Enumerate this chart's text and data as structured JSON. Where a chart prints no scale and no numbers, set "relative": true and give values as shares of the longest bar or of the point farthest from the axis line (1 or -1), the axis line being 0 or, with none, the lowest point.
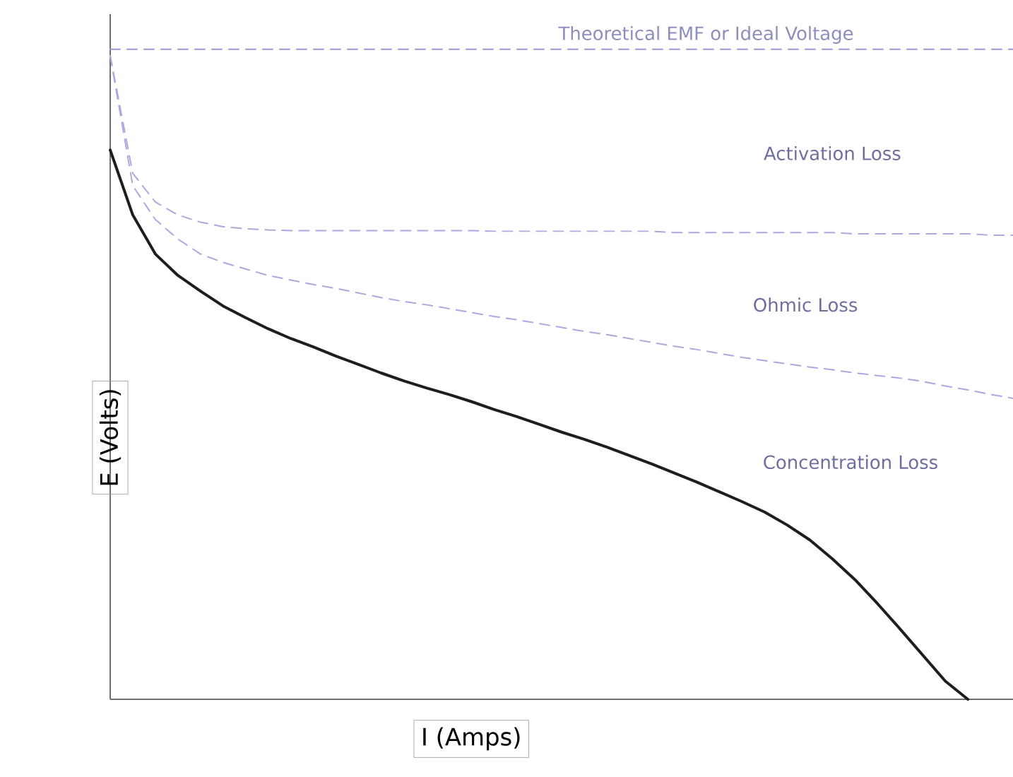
{
  "chart_data": {
    "type": "line",
    "relative": true,
    "xlabel": "I (Amps)",
    "ylabel": "E (Volts)",
    "annotations": [
      "Theoretical EMF or Ideal Voltage",
      "Activation Loss",
      "Ohmic Loss",
      "Concentration Loss"
    ],
    "categories": [
      null,
      null,
      null,
      null,
      null,
      null,
      null,
      null,
      null,
      null,
      null,
      null,
      null,
      null,
      null,
      null,
      null,
      null,
      null,
      null,
      null,
      null,
      null,
      null,
      null,
      null,
      null,
      null,
      null,
      null,
      null,
      null,
      null,
      null,
      null,
      null,
      null,
      null,
      null,
      null,
      null
    ],
    "series": [
      {
        "color": "#9a9ad8",
        "line_style": "dashed",
        "values": [
          1,
          1,
          1,
          1,
          1,
          1,
          1,
          1,
          1,
          1,
          1,
          1,
          1,
          1,
          1,
          1,
          1,
          1,
          1,
          1,
          1,
          1,
          1,
          1,
          1,
          1,
          1,
          1,
          1,
          1,
          1,
          1,
          1,
          1,
          1,
          1,
          1,
          1,
          1,
          1,
          1
        ]
      },
      {
        "color": "#a9a9e0",
        "line_style": "dashed",
        "values": [
          0.99,
          0.809,
          0.765,
          0.745,
          0.734,
          0.727,
          0.724,
          0.722,
          0.721,
          0.721,
          0.721,
          0.721,
          0.721,
          0.721,
          0.721,
          0.721,
          0.721,
          0.72,
          0.72,
          0.72,
          0.72,
          0.72,
          0.72,
          0.72,
          0.72,
          0.718,
          0.718,
          0.718,
          0.718,
          0.718,
          0.718,
          0.718,
          0.718,
          0.716,
          0.716,
          0.716,
          0.716,
          0.716,
          0.716,
          0.714,
          0.714
        ]
      },
      {
        "color": "#a9a9e0",
        "line_style": "dashed",
        "values": [
          0.99,
          0.79,
          0.738,
          0.708,
          0.685,
          0.672,
          0.662,
          0.652,
          0.645,
          0.638,
          0.632,
          0.625,
          0.618,
          0.612,
          0.607,
          0.601,
          0.595,
          0.589,
          0.584,
          0.578,
          0.572,
          0.566,
          0.561,
          0.555,
          0.549,
          0.543,
          0.538,
          0.532,
          0.526,
          0.521,
          0.516,
          0.511,
          0.507,
          0.502,
          0.498,
          0.494,
          0.489,
          0.482,
          0.476,
          0.469,
          0.463
        ]
      },
      {
        "color": "#1e1e1e",
        "line_style": "solid",
        "values": [
          0.845,
          0.745,
          0.685,
          0.652,
          0.628,
          0.605,
          0.587,
          0.57,
          0.555,
          0.542,
          0.528,
          0.515,
          0.502,
          0.49,
          0.479,
          0.469,
          0.458,
          0.446,
          0.435,
          0.423,
          0.411,
          0.4,
          0.388,
          0.375,
          0.362,
          0.348,
          0.334,
          0.319,
          0.304,
          0.288,
          0.268,
          0.245,
          0.216,
          0.184,
          0.147,
          0.108,
          0.068,
          0.028,
          0,
          null,
          null
        ]
      }
    ]
  }
}
